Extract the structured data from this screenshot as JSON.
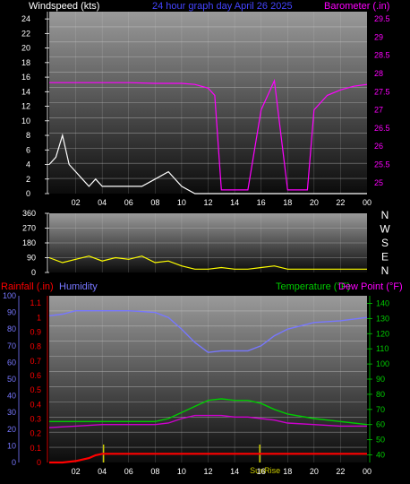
{
  "colors": {
    "background": "#000000",
    "wind": "#ffffff",
    "wind_avg": "#66ff66",
    "barometer": "#ff00ff",
    "direction": "#ffff00",
    "rain": "#ff0000",
    "humidity": "#7777ff",
    "temperature": "#00cc00",
    "dewpoint": "#cc00cc",
    "axis": "#ffffff",
    "events": "#cccc00"
  },
  "top": {
    "left_label": "Windspeed (kts)",
    "title": "24 hour graph day   April 26 2025",
    "right_label": "Barometer (.in)"
  },
  "bottom": {
    "rain_label": "Rainfall (.in)",
    "humidity_label": "Humidity",
    "temperature_label": "Temperature (°F)",
    "dewpoint_label": "Dew Point (°F)",
    "event_label": "SunRise"
  },
  "x_ticks": [
    "02",
    "04",
    "06",
    "08",
    "10",
    "12",
    "14",
    "16",
    "18",
    "20",
    "22",
    "00"
  ],
  "compass": [
    "N",
    "W",
    "S",
    "E",
    "N"
  ],
  "chart_data": [
    {
      "type": "line",
      "name": "wind_barometer",
      "x_range_hours": [
        0,
        24
      ],
      "left_axis": {
        "label": "Windspeed (kts)",
        "range": [
          0,
          25
        ],
        "ticks": [
          "0",
          "2",
          "4",
          "6",
          "8",
          "10",
          "12",
          "14",
          "16",
          "18",
          "20",
          "22",
          "24"
        ]
      },
      "right_axis": {
        "label": "Barometer (.in)",
        "range": [
          24.7,
          29.7
        ],
        "ticks": [
          "25",
          "25.5",
          "26",
          "26.5",
          "27",
          "27.5",
          "28",
          "28.5",
          "29",
          "29.5"
        ]
      },
      "series": [
        {
          "name": "Windspeed",
          "axis": "left",
          "x": [
            0,
            0.5,
            1,
            1.5,
            2,
            2.5,
            3,
            3.5,
            4,
            5,
            6,
            7,
            8,
            9,
            10,
            11,
            12,
            13,
            14,
            15,
            16,
            17,
            18,
            19,
            20,
            21,
            22,
            23,
            24
          ],
          "y": [
            4,
            5,
            8,
            4,
            3,
            2,
            1,
            2,
            1,
            1,
            1,
            1,
            2,
            3,
            1,
            0,
            0,
            0,
            0,
            0,
            0,
            0,
            0,
            0,
            0,
            0,
            0,
            0,
            0
          ]
        },
        {
          "name": "Barometer",
          "axis": "right",
          "x": [
            0,
            2,
            4,
            6,
            8,
            10,
            11,
            12,
            12.5,
            13,
            14,
            15,
            16,
            17,
            18,
            19,
            19.5,
            20,
            21,
            22,
            23,
            24
          ],
          "y": [
            27.75,
            27.75,
            27.75,
            27.75,
            27.73,
            27.73,
            27.7,
            27.6,
            27.4,
            24.8,
            24.8,
            24.8,
            27.0,
            27.8,
            24.8,
            24.8,
            24.8,
            27.0,
            27.4,
            27.55,
            27.65,
            27.7
          ]
        }
      ]
    },
    {
      "type": "scatter",
      "name": "wind_direction",
      "x_range_hours": [
        0,
        24
      ],
      "y_axis": {
        "range": [
          0,
          360
        ],
        "ticks": [
          "0",
          "90",
          "180",
          "270",
          "360"
        ]
      },
      "x": [
        0,
        1,
        2,
        3,
        4,
        5,
        6,
        7,
        8,
        9,
        10,
        11,
        12,
        13,
        14,
        15,
        16,
        17,
        18,
        19,
        20,
        21,
        22,
        23,
        24
      ],
      "y": [
        90,
        60,
        80,
        100,
        70,
        90,
        80,
        100,
        60,
        70,
        40,
        20,
        20,
        30,
        20,
        20,
        30,
        40,
        20,
        20,
        20,
        20,
        20,
        20,
        20
      ]
    },
    {
      "type": "line",
      "name": "rain_humidity_temperature",
      "x_range_hours": [
        0,
        24
      ],
      "rain_axis": {
        "label": "Rainfall (.in)",
        "range": [
          0,
          1.15
        ],
        "ticks": [
          "0",
          "0.1",
          "0.2",
          "0.3",
          "0.4",
          "0.5",
          "0.6",
          "0.7",
          "0.8",
          "0.9",
          "1",
          "1.1"
        ]
      },
      "humidity_axis": {
        "label": "Humidity",
        "range": [
          0,
          100
        ],
        "ticks": [
          "0",
          "10",
          "20",
          "30",
          "40",
          "50",
          "60",
          "70",
          "80",
          "90",
          "100"
        ]
      },
      "temperature_axis": {
        "label": "Temperature (°F)",
        "range": [
          35,
          145
        ],
        "ticks": [
          "40",
          "50",
          "60",
          "70",
          "80",
          "90",
          "100",
          "110",
          "120",
          "130",
          "140"
        ]
      },
      "series": [
        {
          "name": "Rainfall",
          "axis": "rain",
          "x": [
            0,
            1,
            2,
            3,
            3.5,
            4,
            5,
            6,
            8,
            10,
            12,
            14,
            16,
            18,
            20,
            22,
            24
          ],
          "y": [
            0,
            0,
            0.01,
            0.03,
            0.05,
            0.06,
            0.06,
            0.06,
            0.06,
            0.06,
            0.06,
            0.06,
            0.06,
            0.06,
            0.06,
            0.06,
            0.06
          ]
        },
        {
          "name": "Humidity",
          "axis": "humidity",
          "x": [
            0,
            1,
            2,
            4,
            6,
            8,
            9,
            10,
            11,
            12,
            13,
            14,
            15,
            16,
            17,
            18,
            20,
            22,
            24
          ],
          "y": [
            88,
            89,
            91,
            91,
            91,
            90,
            87,
            80,
            72,
            66,
            67,
            67,
            67,
            70,
            76,
            80,
            84,
            85,
            87
          ]
        },
        {
          "name": "Temperature",
          "axis": "temperature",
          "x": [
            0,
            2,
            4,
            6,
            8,
            9,
            10,
            11,
            12,
            13,
            14,
            15,
            16,
            17,
            18,
            20,
            22,
            24
          ],
          "y": [
            62,
            62,
            62,
            62,
            62,
            64,
            68,
            72,
            76,
            77,
            76,
            76,
            74,
            70,
            67,
            64,
            62,
            60
          ]
        },
        {
          "name": "Dew Point",
          "axis": "temperature",
          "x": [
            0,
            2,
            4,
            6,
            8,
            9,
            10,
            11,
            12,
            13,
            14,
            15,
            16,
            17,
            18,
            20,
            22,
            24
          ],
          "y": [
            58,
            59,
            60,
            60,
            60,
            61,
            64,
            66,
            66,
            66,
            65,
            65,
            64,
            63,
            61,
            60,
            59,
            59
          ]
        }
      ],
      "event_markers": [
        {
          "x": 4.1,
          "label": ""
        },
        {
          "x": 15.9,
          "label": "SunRise"
        }
      ]
    }
  ]
}
